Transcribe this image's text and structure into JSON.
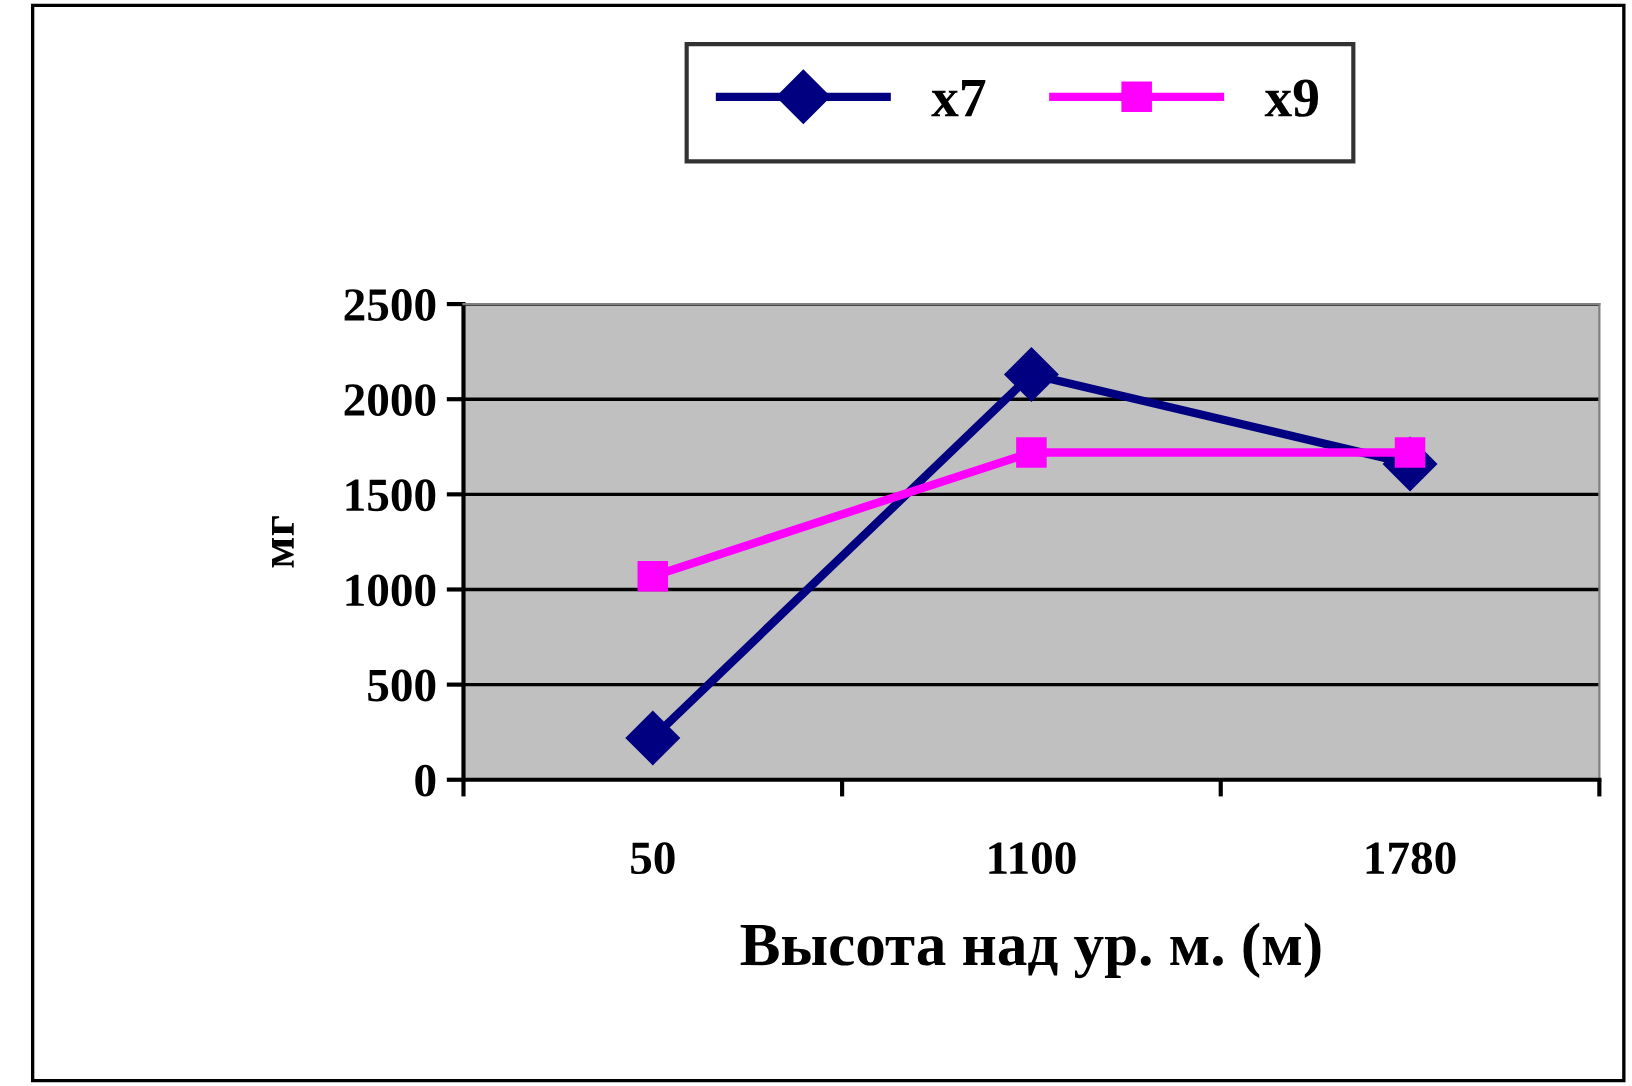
{
  "chart_data": {
    "type": "line",
    "xlabel": "Высота над ур. м. (м)",
    "ylabel": "мг",
    "categories": [
      "50",
      "1100",
      "1780"
    ],
    "series": [
      {
        "name": "x7",
        "color": "#000080",
        "marker": "diamond",
        "values": [
          220,
          2130,
          1660
        ]
      },
      {
        "name": "x9",
        "color": "#ff00ff",
        "marker": "square",
        "values": [
          1070,
          1720,
          1720
        ]
      }
    ],
    "ylim": [
      0,
      2500
    ],
    "yticks": [
      0,
      500,
      1000,
      1500,
      2000,
      2500
    ],
    "grid": "y",
    "legend": "top"
  }
}
